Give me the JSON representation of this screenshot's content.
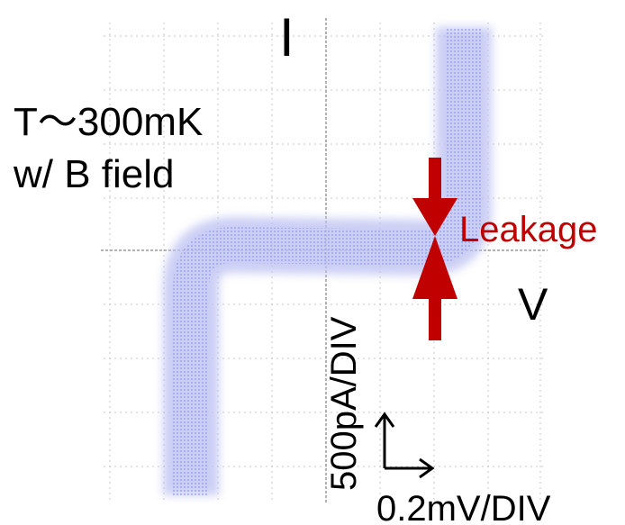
{
  "labels": {
    "current_axis": "I",
    "voltage_axis": "V",
    "temperature": "T～300mK",
    "condition": "w/ B field",
    "leakage": "Leakage",
    "current_scale": "500pA/DIV",
    "voltage_scale": "0.2mV/DIV"
  }
}
